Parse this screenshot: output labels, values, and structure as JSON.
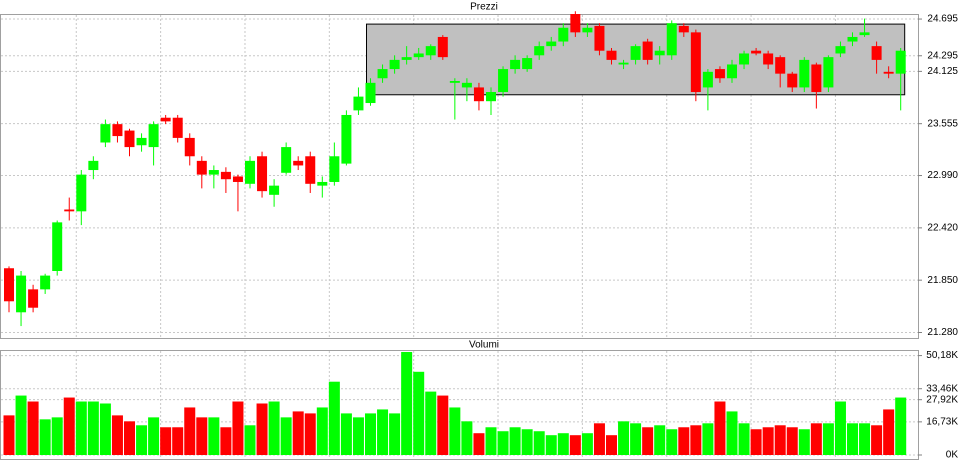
{
  "chart_data": [
    {
      "type": "candlestick",
      "title": "Prezzi",
      "open": [
        21.98,
        21.5,
        21.75,
        21.75,
        21.95,
        22.62,
        22.6,
        23.05,
        23.35,
        23.55,
        23.48,
        23.32,
        23.3,
        23.62,
        23.62,
        23.4,
        23.15,
        23.0,
        23.03,
        22.98,
        22.9,
        23.2,
        22.78,
        23.02,
        23.15,
        23.2,
        22.88,
        22.92,
        23.12,
        23.7,
        23.78,
        24.05,
        24.15,
        24.25,
        24.28,
        24.3,
        24.5,
        24.0,
        23.95,
        23.95,
        23.8,
        23.9,
        24.15,
        24.15,
        24.3,
        24.4,
        24.45,
        24.75,
        24.55,
        24.62,
        24.35,
        24.2,
        24.25,
        24.45,
        24.3,
        24.3,
        24.62,
        24.55,
        23.95,
        24.15,
        24.05,
        24.2,
        24.35,
        24.32,
        24.28,
        24.1,
        23.95,
        24.2,
        23.95,
        24.32,
        24.45,
        24.52,
        24.4,
        24.12,
        24.1
      ],
      "high": [
        22.0,
        21.95,
        21.8,
        21.92,
        22.5,
        22.75,
        23.05,
        23.2,
        23.6,
        23.58,
        23.5,
        23.45,
        23.58,
        23.65,
        23.65,
        23.45,
        23.2,
        23.1,
        23.08,
        23.0,
        23.2,
        23.25,
        22.95,
        23.35,
        23.2,
        23.25,
        22.98,
        23.35,
        23.7,
        23.95,
        24.05,
        24.2,
        24.3,
        24.4,
        24.38,
        24.42,
        24.52,
        24.05,
        24.05,
        24.0,
        23.95,
        24.18,
        24.3,
        24.3,
        24.45,
        24.5,
        24.65,
        24.78,
        24.65,
        24.65,
        24.38,
        24.25,
        24.42,
        24.48,
        24.4,
        24.68,
        24.65,
        24.58,
        24.15,
        24.18,
        24.25,
        24.35,
        24.38,
        24.35,
        24.3,
        24.12,
        24.28,
        24.22,
        24.3,
        24.45,
        24.55,
        24.7,
        24.45,
        24.18,
        24.38
      ],
      "low": [
        21.5,
        21.35,
        21.5,
        21.7,
        21.9,
        22.5,
        22.45,
        22.95,
        23.3,
        23.35,
        23.2,
        23.25,
        23.1,
        23.55,
        23.35,
        23.1,
        22.85,
        22.85,
        22.8,
        22.6,
        22.85,
        22.75,
        22.65,
        23.0,
        23.05,
        22.8,
        22.75,
        22.88,
        23.1,
        23.65,
        23.75,
        24.0,
        24.1,
        24.2,
        24.25,
        24.25,
        24.25,
        23.6,
        23.8,
        23.7,
        23.65,
        23.85,
        24.1,
        24.12,
        24.25,
        24.35,
        24.4,
        24.5,
        24.5,
        24.3,
        24.2,
        24.15,
        24.2,
        24.2,
        24.2,
        24.25,
        24.5,
        23.8,
        23.7,
        24.0,
        24.0,
        24.15,
        24.3,
        24.15,
        23.95,
        23.9,
        23.9,
        23.72,
        23.9,
        24.28,
        24.4,
        24.5,
        24.1,
        24.05,
        23.7
      ],
      "close": [
        21.62,
        21.9,
        21.55,
        21.9,
        22.48,
        22.6,
        23.0,
        23.15,
        23.55,
        23.42,
        23.3,
        23.4,
        23.55,
        23.58,
        23.4,
        23.2,
        23.0,
        23.05,
        22.95,
        22.92,
        23.15,
        22.82,
        22.88,
        23.3,
        23.1,
        22.9,
        22.92,
        23.2,
        23.65,
        23.85,
        24.0,
        24.15,
        24.25,
        24.28,
        24.32,
        24.4,
        24.28,
        24.02,
        24.0,
        23.8,
        23.9,
        24.15,
        24.25,
        24.27,
        24.4,
        24.45,
        24.6,
        24.55,
        24.6,
        24.35,
        24.25,
        24.22,
        24.4,
        24.25,
        24.35,
        24.65,
        24.55,
        23.9,
        24.12,
        24.05,
        24.2,
        24.32,
        24.32,
        24.2,
        24.1,
        23.95,
        24.25,
        23.9,
        24.28,
        24.4,
        24.5,
        24.55,
        24.25,
        24.1,
        24.35
      ],
      "up_color": "#00ff00",
      "down_color": "#ff0000",
      "highlight": {
        "from": 30,
        "to": 74,
        "low": 23.87,
        "high": 24.64,
        "color": "#c0c0c0"
      },
      "ylim": [
        21.22,
        24.75
      ],
      "yticks": [
        {
          "value": 24.695,
          "label": "24.695"
        },
        {
          "value": 24.295,
          "label": "24.295"
        },
        {
          "value": 24.125,
          "label": "24.125"
        },
        {
          "value": 23.555,
          "label": "23.555"
        },
        {
          "value": 22.99,
          "label": "22.990"
        },
        {
          "value": 22.42,
          "label": "22.420"
        },
        {
          "value": 21.85,
          "label": "21.850"
        },
        {
          "value": 21.28,
          "label": "21.280"
        }
      ],
      "grid": true
    },
    {
      "type": "bar",
      "title": "Volumi",
      "values": [
        20,
        30,
        27,
        18,
        19,
        29,
        27,
        27,
        26,
        20,
        17,
        15,
        19,
        14,
        14,
        24,
        19,
        19,
        14,
        27,
        15,
        26,
        27,
        19,
        22,
        21,
        24,
        37,
        21,
        19,
        21,
        23,
        21,
        52,
        42,
        32,
        30,
        24,
        17,
        11,
        14,
        12,
        14,
        13,
        12,
        10,
        11,
        10,
        11,
        16,
        10,
        17,
        16,
        14,
        15,
        13,
        14,
        15,
        16,
        27,
        22,
        16,
        13,
        14,
        15,
        14,
        13,
        16,
        16,
        27,
        16,
        16,
        15,
        23,
        29
      ],
      "ylim": [
        0,
        53
      ],
      "yticks": [
        {
          "value": 50.18,
          "label": "50,18K"
        },
        {
          "value": 33.46,
          "label": "33,46K"
        },
        {
          "value": 27.92,
          "label": "27,92K"
        },
        {
          "value": 16.73,
          "label": "16,73K"
        },
        {
          "value": 0,
          "label": "0K"
        }
      ],
      "grid": true
    }
  ]
}
